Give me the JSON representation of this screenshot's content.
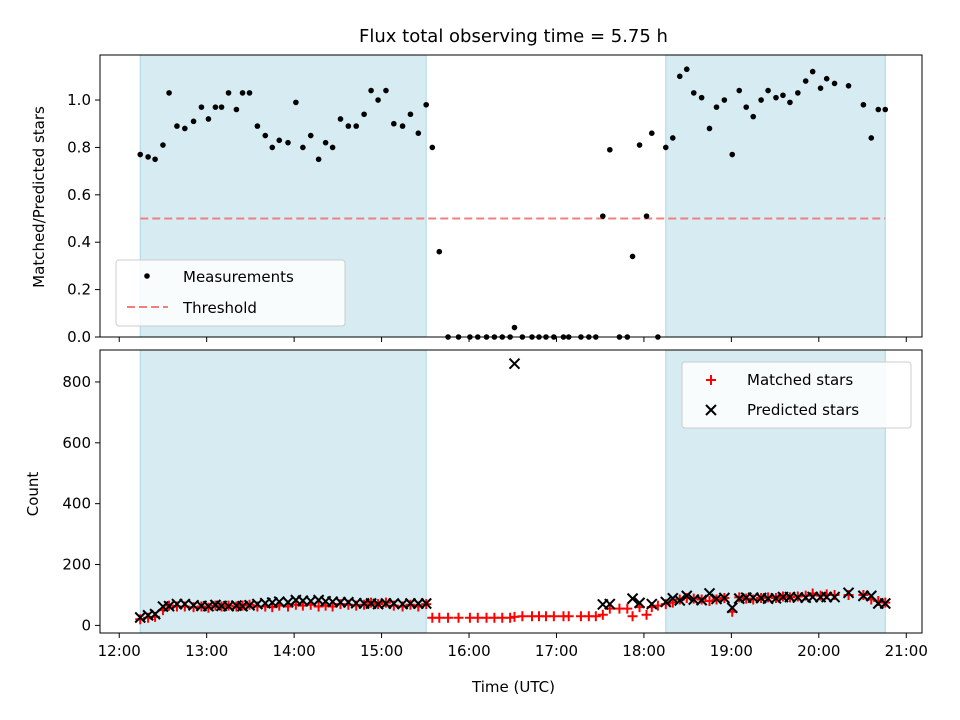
{
  "chart_data": {
    "title": "Flux total observing time = 5.75 h",
    "xlabel": "Time (UTC)",
    "x_range_hours": [
      11.78,
      21.18
    ],
    "x_ticks": [
      {
        "value": 12,
        "label": "12:00"
      },
      {
        "value": 13,
        "label": "13:00"
      },
      {
        "value": 14,
        "label": "14:00"
      },
      {
        "value": 15,
        "label": "15:00"
      },
      {
        "value": 16,
        "label": "16:00"
      },
      {
        "value": 17,
        "label": "17:00"
      },
      {
        "value": 18,
        "label": "18:00"
      },
      {
        "value": 19,
        "label": "19:00"
      },
      {
        "value": 20,
        "label": "20:00"
      },
      {
        "value": 21,
        "label": "21:00"
      }
    ],
    "shaded_intervals_hours": [
      [
        12.24,
        15.51
      ],
      [
        18.25,
        20.76
      ]
    ],
    "shade_color": "#add8e6",
    "top": {
      "type": "scatter",
      "ylabel": "Matched/Predicted stars",
      "ylim": [
        0,
        1.19
      ],
      "y_ticks": [
        0.0,
        0.2,
        0.4,
        0.6,
        0.8,
        1.0
      ],
      "threshold": {
        "value": 0.5,
        "color": "#f08080",
        "label": "Threshold",
        "x_range": [
          12.24,
          20.76
        ]
      },
      "series": [
        {
          "name": "Measurements",
          "color": "#000000",
          "x": [
            12.24,
            12.33,
            12.41,
            12.5,
            12.57,
            12.66,
            12.75,
            12.85,
            12.94,
            13.02,
            13.1,
            13.17,
            13.25,
            13.34,
            13.41,
            13.49,
            13.58,
            13.67,
            13.75,
            13.83,
            13.93,
            14.02,
            14.1,
            14.19,
            14.28,
            14.36,
            14.44,
            14.53,
            14.62,
            14.71,
            14.8,
            14.88,
            14.96,
            15.05,
            15.14,
            15.24,
            15.33,
            15.42,
            15.51,
            15.58,
            15.66,
            15.76,
            15.88,
            16.01,
            16.1,
            16.2,
            16.29,
            16.38,
            16.47,
            16.52,
            16.61,
            16.72,
            16.8,
            16.88,
            16.97,
            17.08,
            17.14,
            17.28,
            17.37,
            17.45,
            17.53,
            17.61,
            17.72,
            17.81,
            17.87,
            17.95,
            18.03,
            18.09,
            18.16,
            18.25,
            18.33,
            18.41,
            18.49,
            18.57,
            18.66,
            18.75,
            18.83,
            18.92,
            19.01,
            19.09,
            19.17,
            19.25,
            19.34,
            19.42,
            19.51,
            19.59,
            19.67,
            19.76,
            19.85,
            19.93,
            20.02,
            20.09,
            20.18,
            20.34,
            20.51,
            20.6,
            20.68,
            20.76
          ],
          "y": [
            0.77,
            0.76,
            0.75,
            0.81,
            1.03,
            0.89,
            0.88,
            0.91,
            0.97,
            0.92,
            0.97,
            0.97,
            1.03,
            0.96,
            1.03,
            1.03,
            0.89,
            0.85,
            0.8,
            0.83,
            0.82,
            0.99,
            0.8,
            0.85,
            0.75,
            0.82,
            0.8,
            0.92,
            0.89,
            0.89,
            0.94,
            1.04,
            1.0,
            1.04,
            0.9,
            0.89,
            0.94,
            0.86,
            0.98,
            0.8,
            0.36,
            0.0,
            0.0,
            0.0,
            0.0,
            0.0,
            0.0,
            0.0,
            0.0,
            0.04,
            0.0,
            0.0,
            0.0,
            0.0,
            0.0,
            0.0,
            0.0,
            0.0,
            0.0,
            0.0,
            0.51,
            0.79,
            0.0,
            0.0,
            0.34,
            0.81,
            0.51,
            0.86,
            0.0,
            0.8,
            0.84,
            1.1,
            1.13,
            1.03,
            1.01,
            0.88,
            0.97,
            1.0,
            0.77,
            1.04,
            0.97,
            0.93,
            1.0,
            1.04,
            1.01,
            1.02,
            0.99,
            1.03,
            1.08,
            1.12,
            1.05,
            1.09,
            1.07,
            1.06,
            0.98,
            0.84,
            0.96,
            0.96
          ]
        }
      ],
      "legend": {
        "placement": "lower-left",
        "entries": [
          "Measurements",
          "Threshold"
        ]
      }
    },
    "bottom": {
      "type": "scatter",
      "ylabel": "Count",
      "ylim": [
        -25,
        905
      ],
      "y_ticks": [
        0,
        200,
        400,
        600,
        800
      ],
      "series": [
        {
          "name": "Matched stars",
          "marker": "+",
          "color": "#ff0000",
          "x": [
            12.24,
            12.33,
            12.41,
            12.5,
            12.57,
            12.66,
            12.75,
            12.85,
            12.94,
            13.02,
            13.1,
            13.17,
            13.25,
            13.34,
            13.41,
            13.49,
            13.58,
            13.67,
            13.75,
            13.83,
            13.93,
            14.02,
            14.1,
            14.19,
            14.28,
            14.36,
            14.44,
            14.53,
            14.62,
            14.71,
            14.8,
            14.88,
            14.96,
            15.05,
            15.14,
            15.24,
            15.33,
            15.42,
            15.51,
            15.58,
            15.66,
            15.76,
            15.88,
            16.01,
            16.1,
            16.2,
            16.29,
            16.38,
            16.47,
            16.52,
            16.61,
            16.72,
            16.8,
            16.88,
            16.97,
            17.08,
            17.14,
            17.28,
            17.37,
            17.45,
            17.53,
            17.61,
            17.72,
            17.81,
            17.87,
            17.95,
            18.03,
            18.09,
            18.16,
            18.25,
            18.33,
            18.41,
            18.49,
            18.57,
            18.66,
            18.75,
            18.83,
            18.92,
            19.01,
            19.09,
            19.17,
            19.25,
            19.34,
            19.42,
            19.51,
            19.59,
            19.67,
            19.76,
            19.85,
            19.93,
            20.02,
            20.09,
            20.18,
            20.34,
            20.51,
            20.6,
            20.68,
            20.76
          ],
          "y": [
            20,
            25,
            28,
            50,
            65,
            62,
            62,
            60,
            62,
            58,
            65,
            62,
            65,
            62,
            65,
            68,
            62,
            62,
            60,
            65,
            62,
            68,
            65,
            68,
            62,
            65,
            62,
            70,
            68,
            65,
            68,
            75,
            70,
            75,
            65,
            62,
            68,
            62,
            70,
            25,
            25,
            25,
            25,
            25,
            25,
            25,
            25,
            25,
            25,
            28,
            30,
            30,
            30,
            30,
            30,
            30,
            30,
            30,
            30,
            30,
            35,
            55,
            55,
            55,
            30,
            60,
            35,
            60,
            65,
            70,
            75,
            85,
            90,
            88,
            85,
            80,
            85,
            90,
            45,
            92,
            88,
            85,
            90,
            92,
            90,
            95,
            92,
            95,
            98,
            105,
            98,
            102,
            100,
            100,
            100,
            85,
            80,
            75
          ]
        },
        {
          "name": "Predicted stars",
          "marker": "x",
          "color": "#000000",
          "x": [
            12.24,
            12.33,
            12.41,
            12.5,
            12.57,
            12.66,
            12.75,
            12.85,
            12.94,
            13.02,
            13.1,
            13.17,
            13.25,
            13.34,
            13.41,
            13.49,
            13.58,
            13.67,
            13.75,
            13.83,
            13.93,
            14.02,
            14.1,
            14.19,
            14.28,
            14.36,
            14.44,
            14.53,
            14.62,
            14.71,
            14.8,
            14.88,
            14.96,
            15.05,
            15.14,
            15.24,
            15.33,
            15.42,
            15.51,
            16.52,
            17.53,
            17.61,
            17.87,
            17.95,
            18.09,
            18.25,
            18.33,
            18.41,
            18.49,
            18.57,
            18.66,
            18.75,
            18.83,
            18.92,
            19.01,
            19.09,
            19.17,
            19.25,
            19.34,
            19.42,
            19.51,
            19.59,
            19.67,
            19.76,
            19.85,
            19.93,
            20.02,
            20.09,
            20.18,
            20.34,
            20.51,
            20.6,
            20.68,
            20.76
          ],
          "y": [
            26,
            33,
            37,
            62,
            63,
            70,
            70,
            66,
            64,
            63,
            67,
            64,
            63,
            65,
            63,
            66,
            70,
            73,
            75,
            78,
            76,
            83,
            81,
            80,
            83,
            79,
            78,
            76,
            76,
            73,
            72,
            72,
            70,
            72,
            72,
            70,
            72,
            72,
            72,
            860,
            69,
            70,
            88,
            74,
            70,
            77,
            89,
            82,
            97,
            85,
            83,
            105,
            87,
            90,
            58,
            88,
            91,
            91,
            90,
            88,
            89,
            93,
            93,
            92,
            91,
            93,
            93,
            93,
            93,
            107,
            97,
            97,
            72,
            72
          ]
        }
      ],
      "legend": {
        "placement": "upper-right",
        "entries": [
          "Matched stars",
          "Predicted stars"
        ]
      }
    }
  }
}
